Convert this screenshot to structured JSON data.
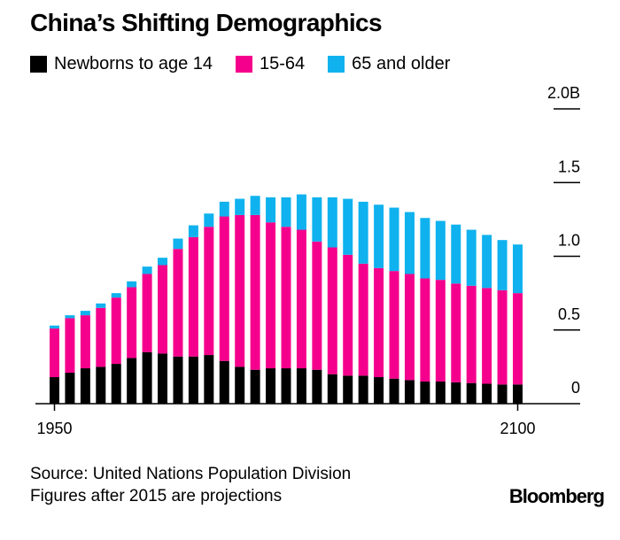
{
  "chart_data": {
    "type": "bar",
    "stacked": true,
    "title": "China’s Shifting Demographics",
    "x": [
      1950,
      1955,
      1960,
      1965,
      1970,
      1975,
      1980,
      1985,
      1990,
      1995,
      2000,
      2005,
      2010,
      2015,
      2020,
      2025,
      2030,
      2035,
      2040,
      2045,
      2050,
      2055,
      2060,
      2065,
      2070,
      2075,
      2080,
      2085,
      2090,
      2095,
      2100
    ],
    "x_tick_labels": [
      "1950",
      "2100"
    ],
    "series": [
      {
        "name": "Newborns to age 14",
        "color": "#000000",
        "values": [
          0.18,
          0.21,
          0.24,
          0.25,
          0.27,
          0.31,
          0.35,
          0.34,
          0.32,
          0.32,
          0.33,
          0.29,
          0.25,
          0.23,
          0.24,
          0.24,
          0.24,
          0.23,
          0.2,
          0.19,
          0.19,
          0.18,
          0.17,
          0.16,
          0.15,
          0.15,
          0.145,
          0.14,
          0.135,
          0.13,
          0.13
        ]
      },
      {
        "name": "15-64",
        "color": "#f5008c",
        "values": [
          0.33,
          0.37,
          0.36,
          0.4,
          0.45,
          0.48,
          0.53,
          0.6,
          0.73,
          0.81,
          0.87,
          0.98,
          1.03,
          1.05,
          0.99,
          0.96,
          0.94,
          0.87,
          0.86,
          0.82,
          0.76,
          0.74,
          0.73,
          0.72,
          0.7,
          0.69,
          0.67,
          0.66,
          0.65,
          0.64,
          0.62
        ]
      },
      {
        "name": "65 and older",
        "color": "#0fb2ee",
        "values": [
          0.02,
          0.02,
          0.03,
          0.03,
          0.03,
          0.04,
          0.05,
          0.05,
          0.07,
          0.08,
          0.09,
          0.1,
          0.11,
          0.13,
          0.17,
          0.2,
          0.24,
          0.3,
          0.34,
          0.38,
          0.42,
          0.43,
          0.43,
          0.42,
          0.41,
          0.4,
          0.4,
          0.38,
          0.36,
          0.34,
          0.33
        ]
      }
    ],
    "y_ticks": [
      {
        "value": 0,
        "label": "0"
      },
      {
        "value": 0.5,
        "label": "0.5"
      },
      {
        "value": 1.0,
        "label": "1.0"
      },
      {
        "value": 1.5,
        "label": "1.5"
      },
      {
        "value": 2.0,
        "label": "2.0B"
      }
    ],
    "ylim": [
      0,
      2.0
    ],
    "xlabel": "",
    "ylabel": "",
    "legend_position": "top"
  },
  "footer": {
    "source": "Source: United Nations Population Division",
    "note": "Figures after 2015 are projections",
    "brand": "Bloomberg"
  }
}
